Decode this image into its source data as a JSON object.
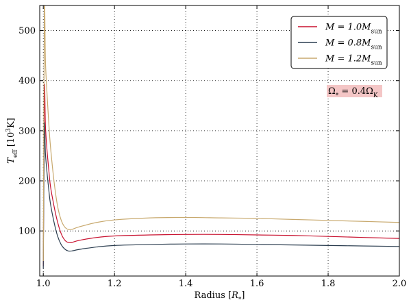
{
  "chart_data": {
    "type": "line",
    "xlabel": "Radius",
    "xlabel_unit": "R",
    "xlabel_unit_sub": "*",
    "ylabel": "T",
    "ylabel_sub": "eff",
    "ylabel_unit_prefix": "10",
    "ylabel_unit_sup": "3",
    "ylabel_unit_suffix": "K",
    "xlim": [
      0.99,
      2.0
    ],
    "ylim": [
      10,
      550
    ],
    "grid": true,
    "grid_style": "dotted",
    "legend_position": "top-right",
    "xticks": [
      {
        "value": 1.0,
        "label": "1.0"
      },
      {
        "value": 1.2,
        "label": "1.2"
      },
      {
        "value": 1.4,
        "label": "1.4"
      },
      {
        "value": 1.6,
        "label": "1.6"
      },
      {
        "value": 1.8,
        "label": "1.8"
      },
      {
        "value": 2.0,
        "label": "2.0"
      }
    ],
    "yticks": [
      {
        "value": 100,
        "label": "100"
      },
      {
        "value": 200,
        "label": "200"
      },
      {
        "value": 300,
        "label": "300"
      },
      {
        "value": 400,
        "label": "400"
      },
      {
        "value": 500,
        "label": "500"
      }
    ],
    "series": [
      {
        "name": "M = 1.0M",
        "legend_main": "M = 1.0M",
        "legend_sub": "sun",
        "color": "#c8102e",
        "x": [
          1.0,
          1.003,
          1.006,
          1.01,
          1.015,
          1.02,
          1.03,
          1.04,
          1.05,
          1.06,
          1.07,
          1.08,
          1.1,
          1.15,
          1.2,
          1.3,
          1.4,
          1.5,
          1.6,
          1.7,
          1.8,
          1.9,
          2.0
        ],
        "y": [
          30,
          380,
          310,
          265,
          225,
          190,
          150,
          118,
          95,
          82,
          77,
          77,
          81,
          87,
          90,
          92,
          93,
          93,
          92,
          91,
          89,
          87,
          85
        ]
      },
      {
        "name": "M = 0.8M",
        "legend_main": "M = 0.8M",
        "legend_sub": "sun",
        "color": "#2c3e50",
        "x": [
          1.0,
          1.003,
          1.006,
          1.01,
          1.015,
          1.02,
          1.03,
          1.04,
          1.05,
          1.06,
          1.07,
          1.08,
          1.1,
          1.15,
          1.2,
          1.3,
          1.4,
          1.5,
          1.6,
          1.7,
          1.8,
          1.9,
          2.0
        ],
        "y": [
          25,
          305,
          255,
          220,
          185,
          155,
          118,
          90,
          73,
          64,
          60,
          60,
          63,
          68,
          71,
          73,
          74,
          74,
          73,
          72,
          71,
          70,
          69
        ]
      },
      {
        "name": "M = 1.2M",
        "legend_main": "M = 1.2M",
        "legend_sub": "sun",
        "color": "#c8a96e",
        "x": [
          1.0,
          1.003,
          1.006,
          1.01,
          1.015,
          1.02,
          1.03,
          1.04,
          1.05,
          1.06,
          1.07,
          1.08,
          1.1,
          1.15,
          1.2,
          1.3,
          1.4,
          1.5,
          1.6,
          1.7,
          1.8,
          1.9,
          2.0
        ],
        "y": [
          40,
          545,
          440,
          380,
          320,
          270,
          200,
          150,
          122,
          108,
          103,
          103,
          108,
          117,
          122,
          126,
          127,
          126,
          125,
          123,
          121,
          119,
          117
        ]
      }
    ],
    "annotation": {
      "text_main": "Ω",
      "text_sub1": "*",
      "text_mid": " = 0.4Ω",
      "text_sub2": "K",
      "background": "#f4c6c6"
    }
  }
}
